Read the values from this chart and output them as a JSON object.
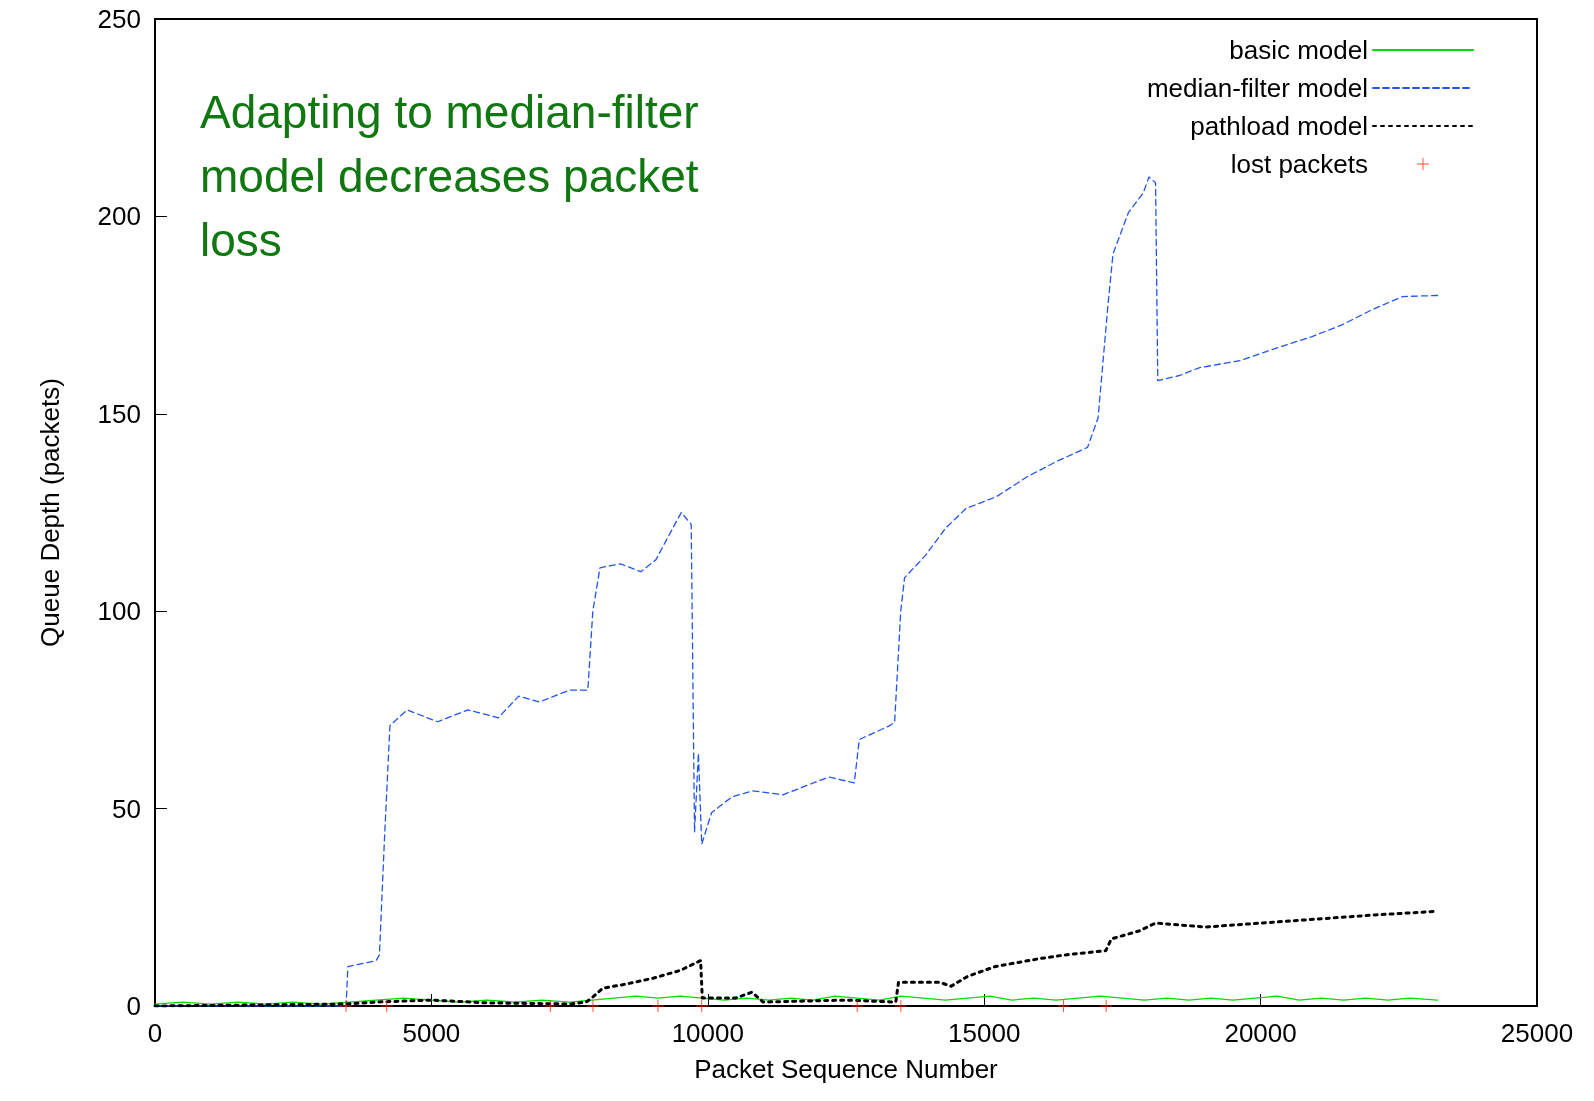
{
  "chart_data": {
    "type": "line",
    "xlabel": "Packet Sequence Number",
    "ylabel": "Queue Depth (packets)",
    "annotations": [
      "Adapting to median-filter model decreases packet loss"
    ],
    "xlim": [
      0,
      25000
    ],
    "xticks": [
      0,
      5000,
      10000,
      15000,
      20000,
      25000
    ],
    "ylim": [
      0,
      250
    ],
    "yticks": [
      0,
      50,
      100,
      150,
      200,
      250
    ],
    "grid": false,
    "legend": "top right",
    "marker": "none",
    "series": [
      {
        "name": "basic model",
        "color": "#00dd00",
        "line_style": "solid",
        "x": [
          0,
          500,
          1000,
          1500,
          2000,
          2500,
          3000,
          3500,
          4000,
          4500,
          5000,
          5500,
          6000,
          6500,
          7000,
          7500,
          7900,
          8300,
          8700,
          9100,
          9500,
          9900,
          10300,
          10700,
          11100,
          11500,
          11900,
          12300,
          12700,
          13100,
          13500,
          13900,
          14300,
          14700,
          15100,
          15500,
          15900,
          16300,
          16700,
          17100,
          17500,
          17900,
          18300,
          18700,
          19100,
          19500,
          19900,
          20300,
          20700,
          21100,
          21500,
          21900,
          22300,
          22700,
          23200
        ],
        "values": [
          0.5,
          1,
          0.5,
          1,
          0.5,
          1,
          0.5,
          1,
          1.5,
          2,
          1.5,
          1,
          1.5,
          1,
          1.5,
          1,
          1.5,
          2,
          2.5,
          2,
          2.5,
          2,
          1.5,
          2,
          1.5,
          2,
          1.5,
          2.5,
          2,
          1.5,
          2.5,
          2,
          1.5,
          2,
          2.5,
          1.5,
          2,
          1.5,
          2,
          2.5,
          2,
          1.5,
          2,
          1.5,
          2,
          1.5,
          2,
          2.5,
          1.5,
          2,
          1.5,
          2,
          1.5,
          2,
          1.5
        ]
      },
      {
        "name": "median-filter model",
        "color": "#2255ee",
        "line_style": "dashed",
        "x": [
          0,
          3000,
          3456,
          3490,
          4000,
          4060,
          4150,
          4250,
          4560,
          5110,
          5660,
          6210,
          6580,
          6950,
          7500,
          7830,
          7920,
          8050,
          8420,
          8790,
          9060,
          9250,
          9520,
          9700,
          9760,
          9830,
          9890,
          10070,
          10440,
          10810,
          11360,
          11910,
          12190,
          12650,
          12740,
          13290,
          13380,
          13490,
          13560,
          13930,
          14300,
          14670,
          15220,
          15770,
          16320,
          16870,
          17060,
          17240,
          17330,
          17610,
          17880,
          17980,
          18100,
          18140,
          18530,
          18900,
          19630,
          20360,
          20920,
          21470,
          22020,
          22570,
          23270
        ],
        "values": [
          0,
          0,
          0,
          10,
          11.5,
          13,
          42,
          71,
          75,
          72,
          75,
          73,
          78.5,
          77,
          80,
          80,
          100,
          111,
          112,
          110,
          113,
          118,
          125,
          122,
          44,
          64,
          41,
          49,
          53,
          54.5,
          53.5,
          56.5,
          58,
          56.5,
          67.5,
          71,
          72,
          100,
          108.5,
          114,
          121,
          126,
          129,
          134,
          138,
          141.5,
          149,
          177.7,
          190.5,
          201,
          206,
          210,
          208.5,
          158.4,
          159.7,
          161.7,
          163.5,
          167,
          169.5,
          172.5,
          176.4,
          179.7,
          180
        ]
      },
      {
        "name": "pathload model",
        "color": "#000000",
        "line_style": "dotted",
        "x": [
          0,
          3456,
          4000,
          5000,
          6000,
          7500,
          7800,
          7900,
          8100,
          8500,
          9000,
          9500,
          9870,
          9900,
          10500,
          10800,
          11000,
          12500,
          13400,
          13450,
          14200,
          14400,
          14700,
          15200,
          16000,
          16500,
          17200,
          17300,
          17800,
          18100,
          19000,
          20000,
          21000,
          22000,
          23200
        ],
        "values": [
          0,
          0.5,
          1,
          1.5,
          0.8,
          0.5,
          1,
          2,
          4.5,
          5.5,
          7,
          9,
          11.5,
          2,
          2,
          3.5,
          1,
          1.5,
          1,
          6,
          6,
          5,
          7.5,
          10,
          12,
          13,
          14,
          17,
          19,
          21,
          20,
          21,
          22,
          23,
          24
        ]
      },
      {
        "name": "lost packets",
        "type": "scatter",
        "marker": "cross",
        "color": "#ff2200",
        "x": [
          3456,
          4191,
          7151,
          7923,
          9099,
          9890,
          12702,
          13493,
          16434,
          17206
        ],
        "values": [
          0,
          0,
          0,
          0,
          0,
          0,
          0,
          0,
          0,
          0
        ]
      }
    ]
  }
}
